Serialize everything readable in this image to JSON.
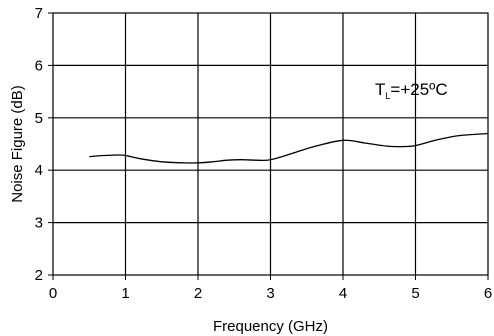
{
  "chart_data": {
    "type": "line",
    "title": "",
    "xlabel": "Frequency (GHz)",
    "ylabel": "Noise Figure (dB)",
    "xlim": [
      0,
      6
    ],
    "ylim": [
      2,
      7
    ],
    "xticks": [
      "0",
      "1",
      "2",
      "3",
      "4",
      "5",
      "6"
    ],
    "yticks": [
      "2",
      "3",
      "4",
      "5",
      "6",
      "7"
    ],
    "grid": true,
    "annotation": {
      "main": "T",
      "sub": "L",
      "rest": "=+25ºC"
    },
    "series": [
      {
        "x": [
          0.5,
          0.7,
          0.9,
          1.0,
          1.2,
          1.5,
          1.8,
          2.0,
          2.2,
          2.4,
          2.6,
          2.8,
          3.0,
          3.3,
          3.6,
          4.0,
          4.3,
          4.6,
          4.8,
          5.0,
          5.3,
          5.6,
          6.0
        ],
        "y": [
          4.26,
          4.28,
          4.29,
          4.28,
          4.22,
          4.16,
          4.14,
          4.14,
          4.16,
          4.19,
          4.2,
          4.19,
          4.2,
          4.32,
          4.45,
          4.57,
          4.52,
          4.46,
          4.45,
          4.47,
          4.58,
          4.66,
          4.7
        ]
      }
    ]
  }
}
